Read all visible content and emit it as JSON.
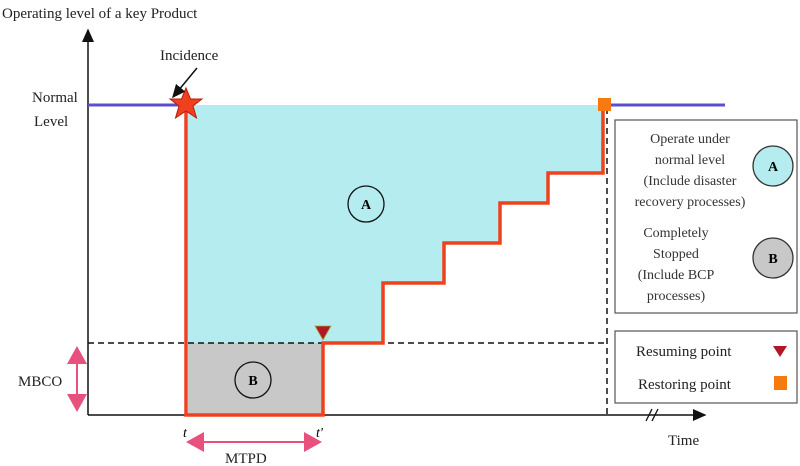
{
  "y_axis_label": "Operating level of a key Product",
  "x_axis_label": "Time",
  "incidence_label": "Incidence",
  "normal_level_label": [
    "Normal",
    "Level"
  ],
  "mbco_label": "MBCO",
  "mtpd_label": "MTPD",
  "t_label": "t",
  "t_prime_label": "t'",
  "region_a_label": "A",
  "region_b_label": "B",
  "legend_regions": {
    "a_text": [
      "Operate under",
      "normal level",
      "(Include disaster",
      "recovery processes)"
    ],
    "b_text": [
      "Completely",
      "Stopped",
      "(Include BCP",
      "processes)"
    ],
    "a_badge": "A",
    "b_badge": "B"
  },
  "legend_points": {
    "resuming": "Resuming point",
    "restoring": "Restoring point"
  },
  "colors": {
    "normal_line": "#5a4fcf",
    "recovery_line": "#f0401e",
    "region_a": "#b5ecf0",
    "region_b": "#c8c8c8",
    "resuming_marker": "#b0182a",
    "restoring_marker": "#f77a10",
    "incidence_star": "#f0401e",
    "dimension_arrows": "#e8517e"
  }
}
